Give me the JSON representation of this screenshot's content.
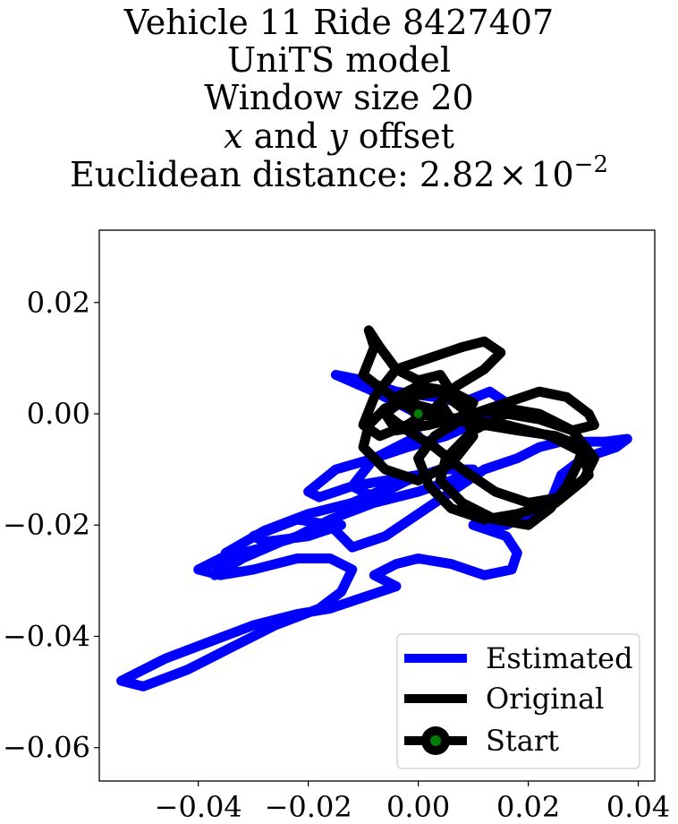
{
  "chart_data": {
    "type": "line",
    "title_lines": [
      "Vehicle 11 Ride 8427407",
      "UniTS model",
      "Window size 20",
      "x and y offset",
      "Euclidean distance: 2.82 × 10⁻²"
    ],
    "title_parts": {
      "distance_prefix": "Euclidean distance: 2.82",
      "distance_times": "×",
      "distance_base": "10",
      "distance_exp": "−2",
      "offset_x": "x",
      "offset_and": " and ",
      "offset_y": "y",
      "offset_suffix": " offset"
    },
    "xlabel": "",
    "ylabel": "",
    "xlim": [
      -0.058,
      0.043
    ],
    "ylim": [
      -0.066,
      0.033
    ],
    "xticks": [
      -0.04,
      -0.02,
      0.0,
      0.02,
      0.04
    ],
    "xtick_labels": [
      "−0.04",
      "−0.02",
      "0.00",
      "0.02",
      "0.04"
    ],
    "yticks": [
      0.02,
      0.0,
      -0.02,
      -0.04,
      -0.06
    ],
    "ytick_labels": [
      "0.02",
      "0.00",
      "−0.02",
      "−0.04",
      "−0.06"
    ],
    "grid": false,
    "legend_position": "bottom-right",
    "series": [
      {
        "name": "Estimated",
        "color": "#0000ff",
        "x": [
          0.0,
          -0.008,
          -0.015,
          -0.01,
          -0.004,
          0.003,
          0.008,
          0.013,
          0.016,
          0.012,
          0.005,
          -0.002,
          -0.008,
          -0.015,
          -0.02,
          -0.018,
          -0.012,
          -0.006,
          0.0,
          -0.005,
          -0.012,
          -0.02,
          -0.028,
          -0.035,
          -0.037,
          -0.032,
          -0.025,
          -0.018,
          -0.014,
          -0.02,
          -0.028,
          -0.03,
          -0.022,
          -0.016,
          -0.012,
          -0.006,
          0.0,
          0.006,
          0.012,
          0.018,
          0.022,
          0.026,
          0.03,
          0.034,
          0.038,
          0.036,
          0.03,
          0.026,
          0.024,
          0.02,
          0.016,
          0.01,
          0.016,
          0.018,
          0.017,
          0.012,
          0.006,
          0.0,
          -0.004,
          -0.008,
          -0.004,
          -0.01,
          -0.016,
          -0.022,
          -0.03,
          -0.038,
          -0.046,
          -0.054,
          -0.05,
          -0.042,
          -0.034,
          -0.026,
          -0.018,
          -0.014,
          -0.012,
          -0.016,
          -0.022,
          -0.03,
          -0.036,
          -0.04,
          -0.036,
          -0.028,
          -0.022,
          -0.016,
          -0.008,
          0.0,
          0.006,
          0.01,
          0.004,
          -0.002,
          -0.008,
          -0.012,
          -0.008,
          0.0
        ],
        "y": [
          0.0,
          0.004,
          0.007,
          0.006,
          0.004,
          0.003,
          0.002,
          0.004,
          0.002,
          -0.001,
          -0.004,
          -0.006,
          -0.008,
          -0.01,
          -0.014,
          -0.015,
          -0.013,
          -0.012,
          -0.011,
          -0.013,
          -0.016,
          -0.018,
          -0.021,
          -0.025,
          -0.029,
          -0.026,
          -0.023,
          -0.021,
          -0.02,
          -0.022,
          -0.023,
          -0.022,
          -0.019,
          -0.02,
          -0.024,
          -0.022,
          -0.018,
          -0.014,
          -0.01,
          -0.008,
          -0.006,
          -0.005,
          -0.005,
          -0.005,
          -0.0045,
          -0.006,
          -0.008,
          -0.011,
          -0.016,
          -0.018,
          -0.02,
          -0.02,
          -0.022,
          -0.025,
          -0.028,
          -0.029,
          -0.027,
          -0.026,
          -0.027,
          -0.029,
          -0.031,
          -0.033,
          -0.035,
          -0.036,
          -0.038,
          -0.041,
          -0.044,
          -0.048,
          -0.049,
          -0.046,
          -0.042,
          -0.038,
          -0.035,
          -0.032,
          -0.028,
          -0.026,
          -0.026,
          -0.028,
          -0.029,
          -0.028,
          -0.026,
          -0.024,
          -0.022,
          -0.019,
          -0.016,
          -0.014,
          -0.012,
          -0.01,
          -0.01,
          -0.012,
          -0.015,
          -0.013,
          -0.008,
          -0.004
        ]
      },
      {
        "name": "Original",
        "color": "#000000",
        "x": [
          0.0,
          -0.006,
          -0.01,
          -0.008,
          -0.009,
          -0.007,
          -0.004,
          0.0,
          0.004,
          0.006,
          0.003,
          -0.002,
          -0.007,
          -0.01,
          -0.008,
          -0.004,
          0.002,
          0.008,
          0.012,
          0.015,
          0.012,
          0.007,
          0.004,
          0.006,
          0.01,
          0.016,
          0.022,
          0.027,
          0.031,
          0.032,
          0.028,
          0.022,
          0.016,
          0.01,
          0.005,
          0.004,
          0.008,
          0.014,
          0.02,
          0.024,
          0.027,
          0.029,
          0.03,
          0.025,
          0.018,
          0.012,
          0.006,
          0.002,
          -0.002,
          -0.006,
          -0.009,
          -0.01,
          -0.006,
          0.0,
          0.006,
          0.01,
          0.008,
          0.004,
          -0.002,
          -0.006,
          -0.004,
          0.002,
          0.01,
          0.016,
          0.022,
          0.028,
          0.032,
          0.03,
          0.025,
          0.018,
          0.012,
          0.006,
          0.002,
          0.0,
          0.003,
          0.008,
          0.01,
          0.006,
          0.0,
          -0.004,
          -0.006,
          -0.002,
          0.003,
          0.008,
          0.014,
          0.02,
          0.026,
          0.031,
          0.03,
          0.024,
          0.016,
          0.008,
          0.0
        ],
        "y": [
          0.0,
          0.004,
          0.007,
          0.012,
          0.015,
          0.012,
          0.008,
          0.006,
          0.007,
          0.004,
          0.001,
          -0.002,
          -0.004,
          -0.002,
          0.003,
          0.008,
          0.01,
          0.012,
          0.013,
          0.011,
          0.008,
          0.005,
          0.002,
          -0.001,
          0.0,
          0.002,
          0.004,
          0.003,
          0.0,
          -0.002,
          -0.003,
          -0.001,
          0.0,
          -0.003,
          -0.008,
          -0.012,
          -0.016,
          -0.019,
          -0.02,
          -0.017,
          -0.013,
          -0.009,
          -0.006,
          -0.004,
          -0.003,
          -0.002,
          -0.001,
          0.001,
          0.002,
          0.001,
          -0.002,
          -0.006,
          -0.01,
          -0.012,
          -0.009,
          -0.004,
          0.001,
          0.004,
          0.003,
          0.0,
          -0.003,
          -0.002,
          0.0,
          0.001,
          0.0,
          -0.003,
          -0.008,
          -0.012,
          -0.016,
          -0.018,
          -0.019,
          -0.017,
          -0.013,
          -0.008,
          -0.004,
          -0.001,
          0.002,
          0.004,
          0.005,
          0.003,
          0.0,
          -0.003,
          -0.006,
          -0.01,
          -0.014,
          -0.016,
          -0.015,
          -0.011,
          -0.007,
          -0.004,
          -0.002,
          -0.001,
          0.0
        ]
      }
    ],
    "start_point": {
      "name": "Start",
      "x": 0.0,
      "y": 0.0,
      "marker_color": "#008000"
    }
  }
}
